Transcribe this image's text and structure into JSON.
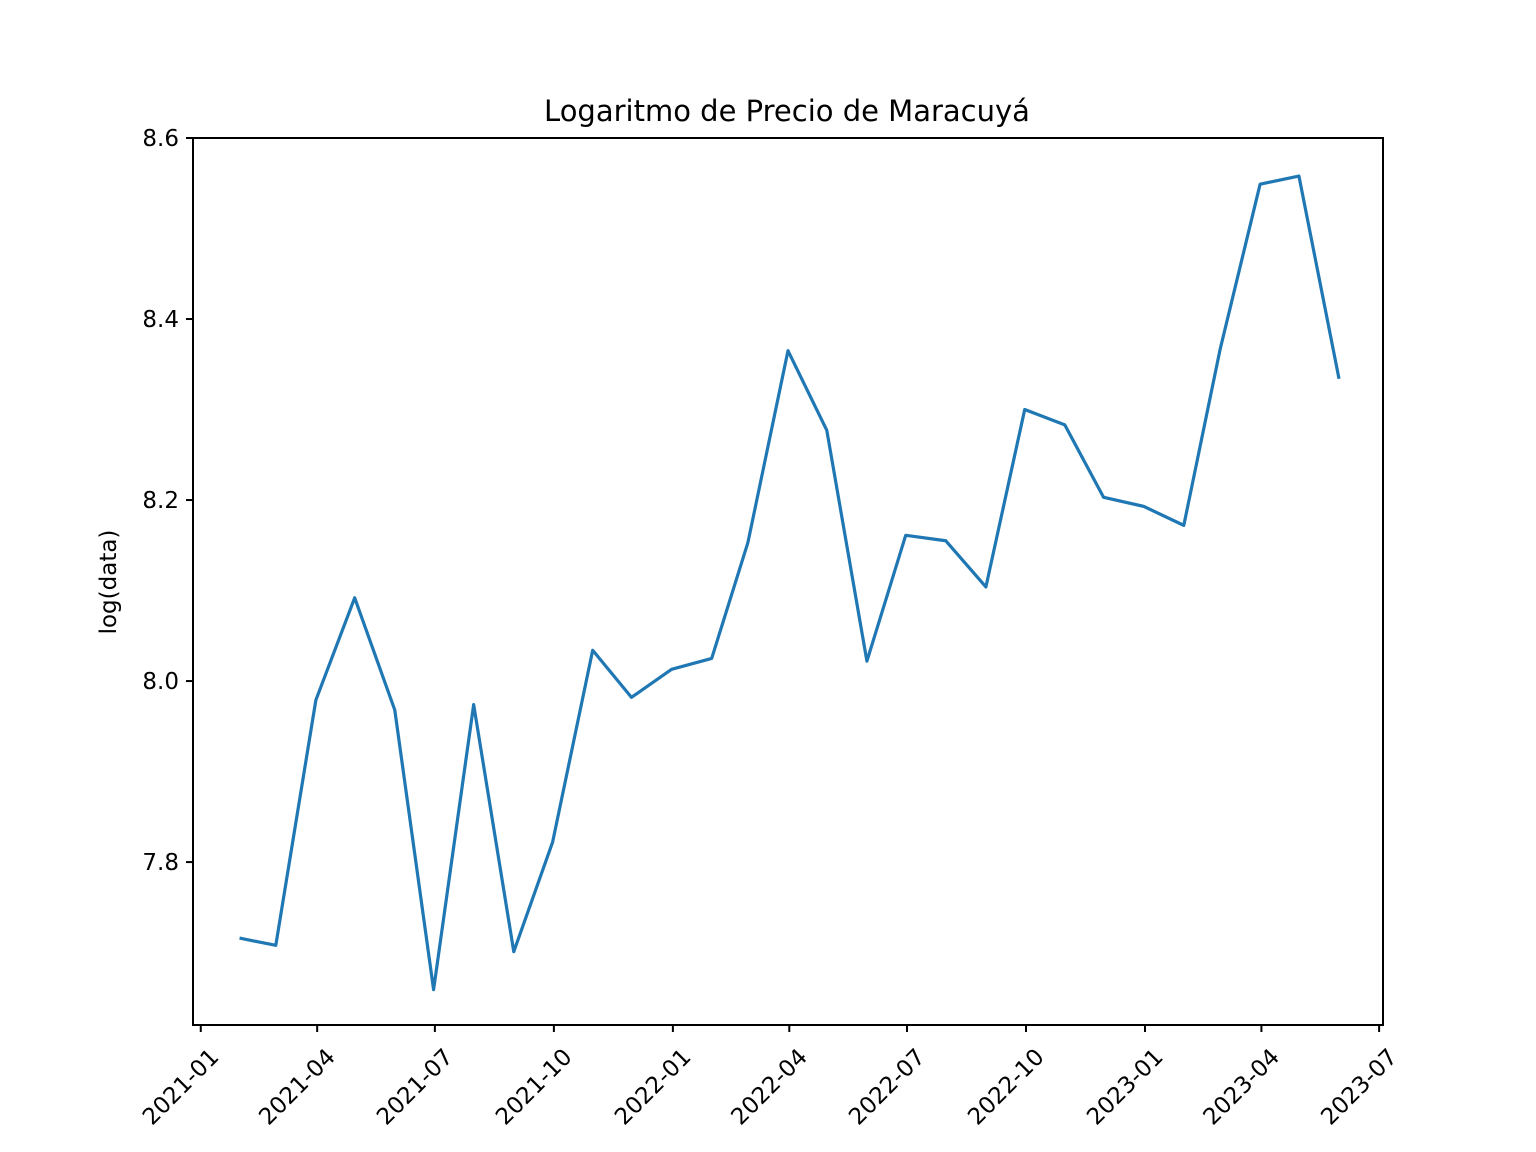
{
  "chart_data": {
    "type": "line",
    "title": "Logaritmo de Precio de Maracuyá",
    "xlabel": "",
    "ylabel": "log(data)",
    "grid": false,
    "x_type": "date",
    "xlim": [
      "2020-12-26",
      "2023-07-04"
    ],
    "ylim": [
      7.62,
      8.6
    ],
    "x_ticks": [
      "2021-01",
      "2021-04",
      "2021-07",
      "2021-10",
      "2022-01",
      "2022-04",
      "2022-07",
      "2022-10",
      "2023-01",
      "2023-04",
      "2023-07"
    ],
    "y_ticks": [
      "7.8",
      "8.0",
      "8.2",
      "8.4",
      "8.6"
    ],
    "color": "#1f77b4",
    "series": [
      {
        "x": [
          "2021-01-31",
          "2021-02-28",
          "2021-03-31",
          "2021-04-30",
          "2021-05-31",
          "2021-06-30",
          "2021-07-31",
          "2021-08-31",
          "2021-09-30",
          "2021-10-31",
          "2021-11-30",
          "2021-12-31",
          "2022-01-31",
          "2022-02-28",
          "2022-03-31",
          "2022-04-30",
          "2022-05-31",
          "2022-06-30",
          "2022-07-31",
          "2022-08-31",
          "2022-09-30",
          "2022-10-31",
          "2022-11-30",
          "2022-12-31",
          "2023-01-31",
          "2023-02-28",
          "2023-03-31",
          "2023-04-30",
          "2023-05-31"
        ],
        "values": [
          7.716,
          7.708,
          7.979,
          8.092,
          7.968,
          7.659,
          7.974,
          7.701,
          7.822,
          8.034,
          7.982,
          8.013,
          8.025,
          8.153,
          8.365,
          8.277,
          8.022,
          8.161,
          8.155,
          8.104,
          8.3,
          8.283,
          8.203,
          8.193,
          8.172,
          8.366,
          8.549,
          8.558,
          8.334
        ]
      }
    ]
  }
}
